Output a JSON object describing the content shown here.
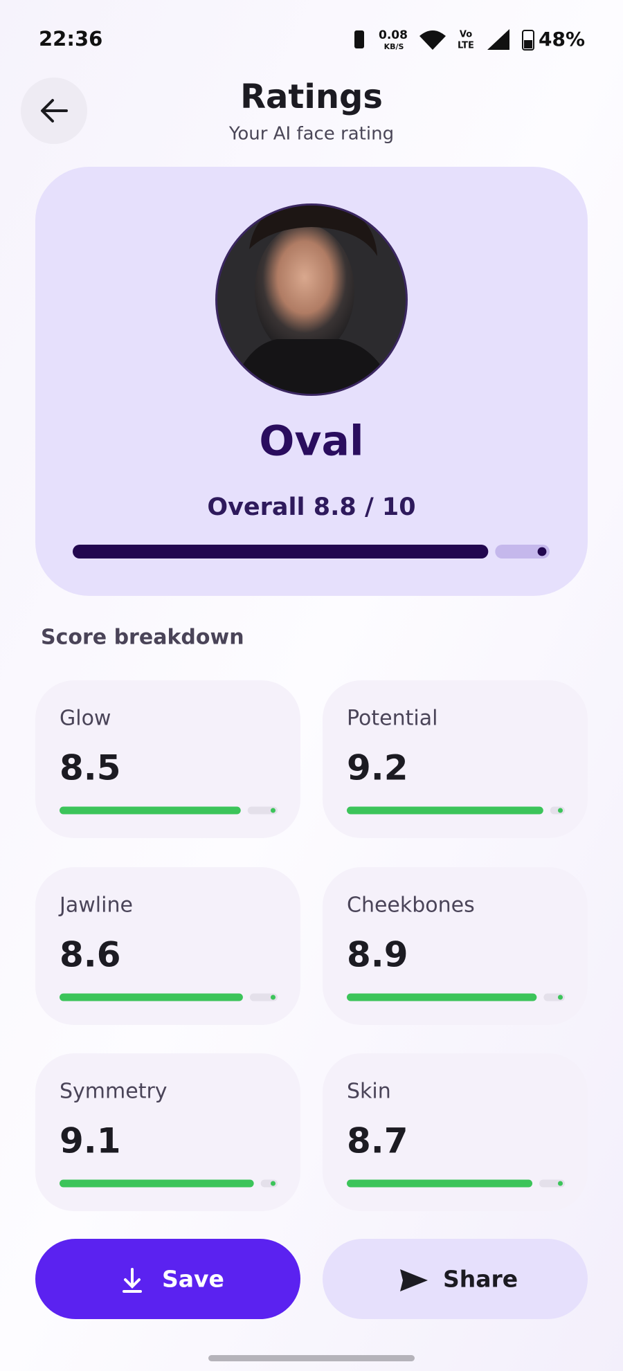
{
  "status_bar": {
    "time": "22:36",
    "net_speed": "0.08",
    "net_unit": "KB/S",
    "volte_top": "Vo",
    "volte_bottom": "LTE",
    "battery": "48%"
  },
  "header": {
    "title": "Ratings",
    "subtitle": "Your AI face rating"
  },
  "result": {
    "face_shape": "Oval",
    "overall": {
      "label": "Overall",
      "score": 8.8,
      "separator": "/",
      "max": 10
    }
  },
  "breakdown": {
    "title": "Score breakdown",
    "items": [
      {
        "label": "Glow",
        "score": 8.5
      },
      {
        "label": "Potential",
        "score": 9.2
      },
      {
        "label": "Jawline",
        "score": 8.6
      },
      {
        "label": "Cheekbones",
        "score": 8.9
      },
      {
        "label": "Symmetry",
        "score": 9.1
      },
      {
        "label": "Skin",
        "score": 8.7
      }
    ]
  },
  "actions": {
    "save": "Save",
    "share": "Share"
  }
}
